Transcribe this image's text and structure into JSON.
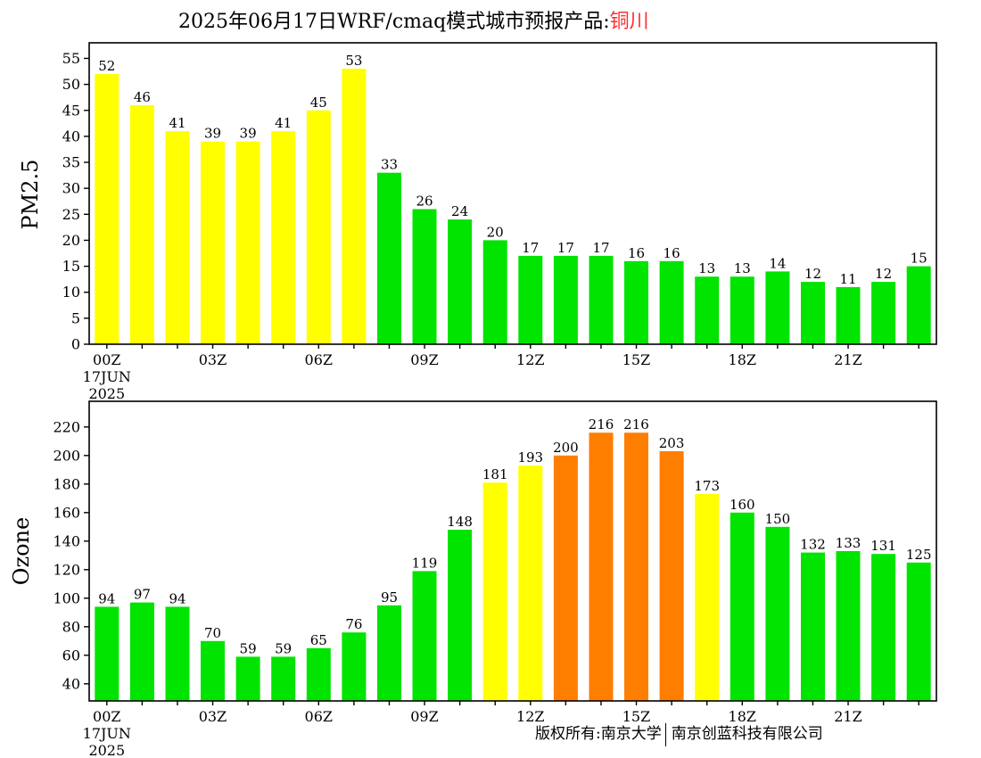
{
  "header": {
    "title_prefix": "2025年06月17日WRF/cmaq模式城市预报产品:",
    "city": "铜川"
  },
  "footer": {
    "copyright_left": "版权所有:南京大学",
    "copyright_right": "南京创蓝科技有限公司"
  },
  "chart_data": [
    {
      "type": "bar",
      "ylabel": "PM2.5",
      "ylim": [
        0,
        58
      ],
      "yticks": [
        0,
        5,
        10,
        15,
        20,
        25,
        30,
        35,
        40,
        45,
        50,
        55
      ],
      "x": [
        "00Z",
        "01Z",
        "02Z",
        "03Z",
        "04Z",
        "05Z",
        "06Z",
        "07Z",
        "08Z",
        "09Z",
        "10Z",
        "11Z",
        "12Z",
        "13Z",
        "14Z",
        "15Z",
        "16Z",
        "17Z",
        "18Z",
        "19Z",
        "20Z",
        "21Z",
        "22Z",
        "23Z"
      ],
      "xtick_labels": [
        {
          "index": 0,
          "label": "00Z"
        },
        {
          "index": 3,
          "label": "03Z"
        },
        {
          "index": 6,
          "label": "06Z"
        },
        {
          "index": 9,
          "label": "09Z"
        },
        {
          "index": 12,
          "label": "12Z"
        },
        {
          "index": 15,
          "label": "15Z"
        },
        {
          "index": 18,
          "label": "18Z"
        },
        {
          "index": 21,
          "label": "21Z"
        }
      ],
      "date_label": [
        "17JUN",
        "2025"
      ],
      "values": [
        52,
        46,
        41,
        39,
        39,
        41,
        45,
        53,
        33,
        26,
        24,
        20,
        17,
        17,
        17,
        16,
        16,
        13,
        13,
        14,
        12,
        11,
        12,
        15
      ],
      "colors": [
        "#ffff00",
        "#ffff00",
        "#ffff00",
        "#ffff00",
        "#ffff00",
        "#ffff00",
        "#ffff00",
        "#ffff00",
        "#00e400",
        "#00e400",
        "#00e400",
        "#00e400",
        "#00e400",
        "#00e400",
        "#00e400",
        "#00e400",
        "#00e400",
        "#00e400",
        "#00e400",
        "#00e400",
        "#00e400",
        "#00e400",
        "#00e400",
        "#00e400"
      ],
      "grid": false
    },
    {
      "type": "bar",
      "ylabel": "Ozone",
      "ylim": [
        28,
        238
      ],
      "yticks": [
        40,
        60,
        80,
        100,
        120,
        140,
        160,
        180,
        200,
        220
      ],
      "x": [
        "00Z",
        "01Z",
        "02Z",
        "03Z",
        "04Z",
        "05Z",
        "06Z",
        "07Z",
        "08Z",
        "09Z",
        "10Z",
        "11Z",
        "12Z",
        "13Z",
        "14Z",
        "15Z",
        "16Z",
        "17Z",
        "18Z",
        "19Z",
        "20Z",
        "21Z",
        "22Z",
        "23Z"
      ],
      "xtick_labels": [
        {
          "index": 0,
          "label": "00Z"
        },
        {
          "index": 3,
          "label": "03Z"
        },
        {
          "index": 6,
          "label": "06Z"
        },
        {
          "index": 9,
          "label": "09Z"
        },
        {
          "index": 12,
          "label": "12Z"
        },
        {
          "index": 15,
          "label": "15Z"
        },
        {
          "index": 18,
          "label": "18Z"
        },
        {
          "index": 21,
          "label": "21Z"
        }
      ],
      "date_label": [
        "17JUN",
        "2025"
      ],
      "values": [
        94,
        97,
        94,
        70,
        59,
        59,
        65,
        76,
        95,
        119,
        148,
        181,
        193,
        200,
        216,
        216,
        203,
        173,
        160,
        150,
        132,
        133,
        131,
        125
      ],
      "colors": [
        "#00e400",
        "#00e400",
        "#00e400",
        "#00e400",
        "#00e400",
        "#00e400",
        "#00e400",
        "#00e400",
        "#00e400",
        "#00e400",
        "#00e400",
        "#ffff00",
        "#ffff00",
        "#ff7e00",
        "#ff7e00",
        "#ff7e00",
        "#ff7e00",
        "#ffff00",
        "#00e400",
        "#00e400",
        "#00e400",
        "#00e400",
        "#00e400",
        "#00e400"
      ],
      "grid": false
    }
  ]
}
